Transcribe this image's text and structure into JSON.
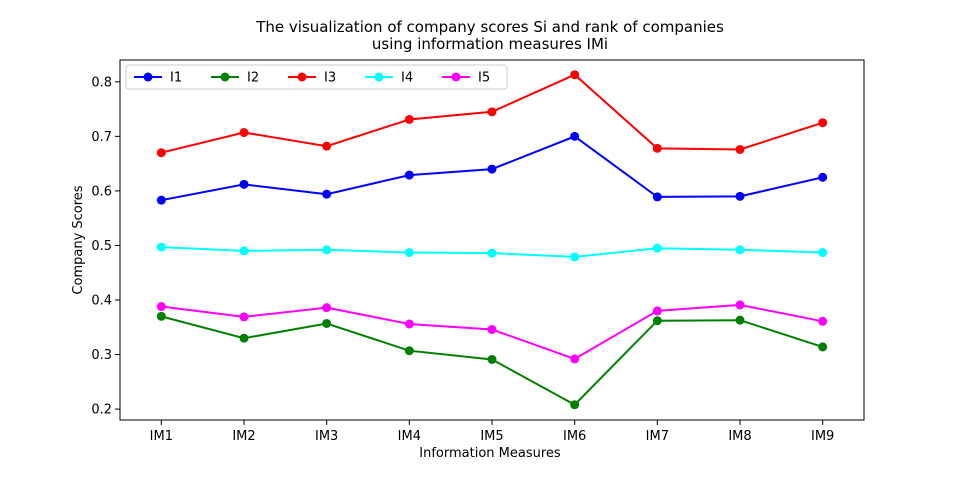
{
  "chart_data": {
    "type": "line",
    "title": "The visualization of company scores Si and rank of companies\nusing information measures IMi",
    "xlabel": "Information Measures",
    "ylabel": "Company Scores",
    "categories": [
      "IM1",
      "IM2",
      "IM3",
      "IM4",
      "IM5",
      "IM6",
      "IM7",
      "IM8",
      "IM9"
    ],
    "ylim": [
      0.18,
      0.84
    ],
    "yticks": [
      0.2,
      0.3,
      0.4,
      0.5,
      0.6,
      0.7,
      0.8
    ],
    "grid": false,
    "legend_position": "top-left",
    "series": [
      {
        "name": "I1",
        "color": "#0000ff",
        "values": [
          0.583,
          0.612,
          0.594,
          0.629,
          0.64,
          0.7,
          0.589,
          0.59,
          0.625
        ]
      },
      {
        "name": "I2",
        "color": "#008000",
        "values": [
          0.37,
          0.33,
          0.357,
          0.307,
          0.291,
          0.208,
          0.362,
          0.363,
          0.314
        ]
      },
      {
        "name": "I3",
        "color": "#ff0000",
        "values": [
          0.67,
          0.707,
          0.682,
          0.731,
          0.745,
          0.813,
          0.678,
          0.676,
          0.725
        ]
      },
      {
        "name": "I4",
        "color": "#00ffff",
        "values": [
          0.497,
          0.49,
          0.492,
          0.487,
          0.486,
          0.479,
          0.495,
          0.492,
          0.487
        ]
      },
      {
        "name": "I5",
        "color": "#ff00ff",
        "values": [
          0.388,
          0.369,
          0.386,
          0.356,
          0.346,
          0.292,
          0.38,
          0.391,
          0.361
        ]
      }
    ]
  }
}
